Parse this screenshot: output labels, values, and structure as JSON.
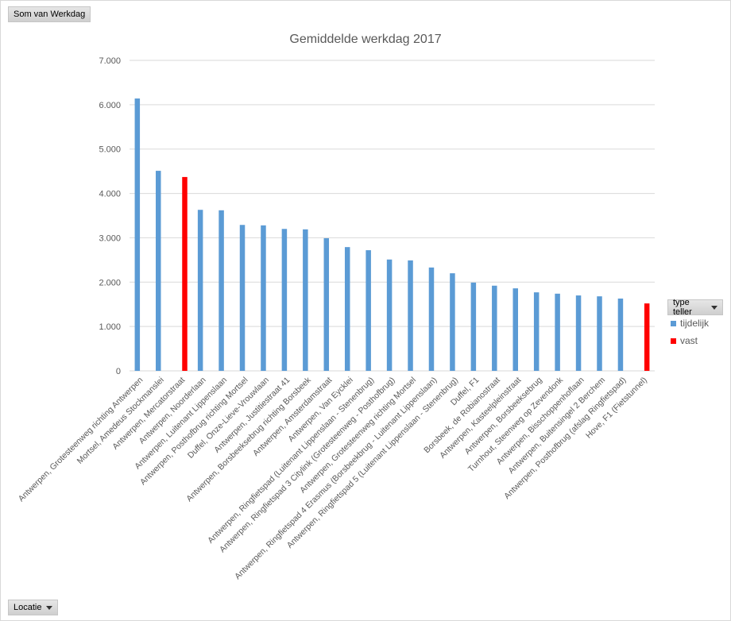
{
  "filters": {
    "values_field": "Som van Werkdag",
    "axis_field": "Locatie",
    "legend_field": "type teller"
  },
  "chart_data": {
    "type": "bar",
    "title": "Gemiddelde werkdag 2017",
    "xlabel": "",
    "ylabel": "",
    "ylim": [
      0,
      7000
    ],
    "yticks": [
      "0",
      "1.000",
      "2.000",
      "3.000",
      "4.000",
      "5.000",
      "6.000",
      "7.000"
    ],
    "grid": true,
    "legend_position": "right",
    "categories": [
      "Antwerpen, Grotesteenweg richting Antwerpen",
      "Mortsel, Amedeus Stockmanslei",
      "Antwerpen, Mercatorstraat",
      "Antwerpen, Noorderlaan",
      "Antwerpen, Luitenant Lippenslaan",
      "Antwerpen, Posthofbrug richting Mortsel",
      "Duffel, Onze-Lieve-Vrouwlaan",
      "Antwerpen, Justitiestraat 41",
      "Antwerpen, Borsbeeksebrug richting Borsbeek",
      "Antwerpen, Amsterdamstraat",
      "Antwerpen, Van Eycklei",
      "Antwerpen, Ringfietspad (Luitenant Lippenslaan - Stenenbrug)",
      "Antwerpen, Ringfietspad 3 Citylink (Grotesteenweg - Posthofbrug)",
      "Antwerpen, Grotesteenweg richting Mortsel",
      "Antwerpen, Ringfietspad 4 Erasmus (Borsbeekbrug - Luitenant Lippenslaan)",
      "Antwerpen, Ringfietspad 5 (Luitenant Lippenslaan - Stenenbrug)",
      "Duffel, F1",
      "Borsbeek, de Robianostraat",
      "Antwerpen, Kasteelpleinstraat",
      "Antwerpen, Borsbeeksebrug",
      "Turnhout, Steenweg op Zevendonk",
      "Antwerpen, Bisschoppenhoflaan",
      "Antwerpen, Buitensingel 2 Berchem",
      "Antwerpen, Posthofbrug (afslag Ringfietspad)",
      "Hove, F1 (Fietstunnel)"
    ],
    "series": [
      {
        "name": "tijdelijk",
        "color": "#5b9bd5",
        "values": [
          6140,
          4510,
          null,
          3630,
          3620,
          3290,
          3280,
          3200,
          3190,
          2990,
          2790,
          2720,
          2510,
          2490,
          2330,
          2200,
          1990,
          1920,
          1860,
          1770,
          1740,
          1700,
          1680,
          1630,
          null
        ]
      },
      {
        "name": "vast",
        "color": "#ff0000",
        "values": [
          null,
          null,
          4370,
          null,
          null,
          null,
          null,
          null,
          null,
          null,
          null,
          null,
          null,
          null,
          null,
          null,
          null,
          null,
          null,
          null,
          null,
          null,
          null,
          null,
          1520
        ]
      }
    ]
  }
}
